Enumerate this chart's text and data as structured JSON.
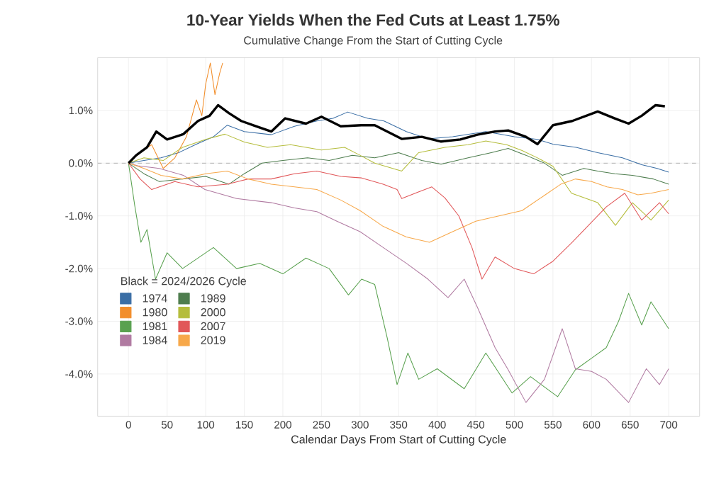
{
  "chart_data": {
    "type": "line",
    "title": "10-Year Yields When the Fed Cuts at Least 1.75%",
    "subtitle": "Cumulative Change From the Start of Cutting Cycle",
    "xlabel": "Calendar Days From Start of Cutting Cycle",
    "legend_title": "Black = 2024/2026 Cycle",
    "xlim": [
      -40,
      740
    ],
    "xticks": [
      0,
      50,
      100,
      150,
      200,
      250,
      300,
      350,
      400,
      450,
      500,
      550,
      600,
      650,
      700
    ],
    "ylim": [
      -4.8,
      2.0
    ],
    "yticks": [
      {
        "value": -4,
        "label": "-4.0%"
      },
      {
        "value": -3,
        "label": "-3.0%"
      },
      {
        "value": -2,
        "label": "-2.0%"
      },
      {
        "value": -1,
        "label": "-1.0%"
      },
      {
        "value": 0,
        "label": "0.0%"
      },
      {
        "value": 1,
        "label": "1.0%"
      }
    ],
    "grid": true,
    "legend": "bottom left",
    "marker": "none",
    "ref_lines": [
      {
        "axis": "y",
        "value": 0,
        "color": "#999999",
        "line_style": "dashed"
      }
    ],
    "series": [
      {
        "color": "#000000",
        "x": [
          0,
          10,
          24,
          36,
          50,
          71,
          90,
          105,
          116,
          130,
          146,
          165,
          185,
          203,
          230,
          250,
          275,
          302,
          319,
          354,
          380,
          405,
          430,
          452,
          475,
          492,
          515,
          530,
          550,
          575,
          608,
          630,
          648,
          665,
          683,
          695
        ],
        "values": [
          0,
          0.15,
          0.3,
          0.6,
          0.45,
          0.55,
          0.8,
          0.9,
          1.1,
          0.95,
          0.8,
          0.7,
          0.6,
          0.85,
          0.75,
          0.88,
          0.7,
          0.72,
          0.72,
          0.46,
          0.5,
          0.41,
          0.45,
          0.54,
          0.6,
          0.62,
          0.5,
          0.36,
          0.72,
          0.8,
          0.98,
          0.85,
          0.75,
          0.9,
          1.1,
          1.08
        ]
      },
      {
        "name": "1974",
        "color": "#3a6ea5",
        "x": [
          0,
          20,
          42,
          65,
          88,
          110,
          128,
          150,
          185,
          215,
          244,
          265,
          284,
          310,
          331,
          360,
          388,
          420,
          463,
          500,
          530,
          550,
          580,
          608,
          640,
          665,
          685,
          700
        ],
        "values": [
          0,
          0.05,
          0.1,
          0.2,
          0.36,
          0.5,
          0.72,
          0.6,
          0.54,
          0.7,
          0.8,
          0.85,
          0.97,
          0.85,
          0.8,
          0.6,
          0.46,
          0.5,
          0.6,
          0.5,
          0.45,
          0.36,
          0.3,
          0.2,
          0.1,
          -0.03,
          -0.1,
          -0.17
        ]
      },
      {
        "name": "1980",
        "color": "#f28e2b",
        "x": [
          0,
          15,
          30,
          45,
          60,
          75,
          88,
          95,
          100,
          106,
          112,
          118,
          122
        ],
        "values": [
          0,
          0.2,
          0.35,
          -0.1,
          0.1,
          0.5,
          1.2,
          0.9,
          1.5,
          1.9,
          1.3,
          1.7,
          1.9
        ]
      },
      {
        "name": "1981",
        "color": "#59a14f",
        "x": [
          0,
          8,
          16,
          24,
          35,
          50,
          70,
          90,
          110,
          140,
          170,
          200,
          230,
          260,
          285,
          302,
          319,
          335,
          348,
          362,
          376,
          400,
          435,
          463,
          497,
          521,
          556,
          579,
          600,
          619,
          635,
          648,
          665,
          677,
          700
        ],
        "values": [
          0,
          -0.8,
          -1.5,
          -1.26,
          -2.2,
          -1.7,
          -2.0,
          -1.8,
          -1.6,
          -2.0,
          -1.9,
          -2.1,
          -1.8,
          -2.0,
          -2.5,
          -2.2,
          -2.3,
          -3.3,
          -4.2,
          -3.6,
          -4.1,
          -3.9,
          -4.28,
          -3.6,
          -4.36,
          -4.05,
          -4.43,
          -3.92,
          -3.7,
          -3.5,
          -3.0,
          -2.47,
          -3.07,
          -2.63,
          -3.14
        ]
      },
      {
        "name": "1984",
        "color": "#b07aa1",
        "x": [
          0,
          12,
          40,
          71,
          99,
          140,
          185,
          215,
          244,
          270,
          300,
          330,
          360,
          388,
          414,
          435,
          452,
          475,
          492,
          515,
          539,
          562,
          579,
          600,
          619,
          648,
          671,
          688,
          700
        ],
        "values": [
          0,
          -0.05,
          -0.1,
          -0.23,
          -0.5,
          -0.67,
          -0.75,
          -0.85,
          -0.92,
          -1.1,
          -1.3,
          -1.6,
          -1.9,
          -2.2,
          -2.55,
          -2.2,
          -2.73,
          -3.5,
          -3.92,
          -4.54,
          -4.1,
          -3.14,
          -3.9,
          -3.95,
          -4.1,
          -4.54,
          -3.9,
          -4.2,
          -3.9
        ]
      },
      {
        "name": "1989",
        "color": "#4e7d4e",
        "x": [
          0,
          20,
          40,
          70,
          100,
          130,
          150,
          173,
          200,
          232,
          260,
          290,
          319,
          350,
          380,
          405,
          440,
          470,
          492,
          515,
          539,
          562,
          590,
          608,
          630,
          653,
          680,
          700
        ],
        "values": [
          0,
          -0.2,
          -0.35,
          -0.3,
          -0.25,
          -0.4,
          -0.2,
          0,
          0.05,
          0.1,
          0.05,
          0.15,
          0.1,
          0.2,
          0.05,
          -0.02,
          0.1,
          0.2,
          0.28,
          0.15,
          0,
          -0.23,
          -0.1,
          -0.15,
          -0.2,
          -0.23,
          -0.3,
          -0.4
        ]
      },
      {
        "name": "2000",
        "color": "#b5bd3c",
        "x": [
          0,
          20,
          45,
          70,
          100,
          125,
          150,
          180,
          210,
          250,
          280,
          300,
          319,
          354,
          376,
          410,
          440,
          463,
          490,
          510,
          530,
          550,
          574,
          608,
          631,
          653,
          677,
          700
        ],
        "values": [
          0,
          0.1,
          0.05,
          0.3,
          0.45,
          0.55,
          0.4,
          0.3,
          0.35,
          0.25,
          0.3,
          0.15,
          0,
          -0.15,
          0.2,
          0.3,
          0.35,
          0.42,
          0.35,
          0.24,
          0.1,
          -0.06,
          -0.57,
          -0.75,
          -1.18,
          -0.75,
          -1.08,
          -0.7
        ]
      },
      {
        "name": "2007",
        "color": "#e15759",
        "x": [
          0,
          15,
          30,
          60,
          90,
          128,
          155,
          185,
          215,
          244,
          275,
          302,
          330,
          348,
          354,
          375,
          393,
          410,
          428,
          445,
          458,
          475,
          500,
          525,
          550,
          575,
          596,
          619,
          643,
          665,
          688,
          700
        ],
        "values": [
          0,
          -0.3,
          -0.5,
          -0.35,
          -0.45,
          -0.4,
          -0.3,
          -0.3,
          -0.2,
          -0.15,
          -0.25,
          -0.28,
          -0.4,
          -0.5,
          -0.67,
          -0.55,
          -0.45,
          -0.66,
          -1.0,
          -1.6,
          -2.2,
          -1.78,
          -2.0,
          -2.1,
          -1.86,
          -1.5,
          -1.18,
          -0.83,
          -0.57,
          -1.08,
          -0.75,
          -0.96
        ]
      },
      {
        "name": "2019",
        "color": "#f7a84a",
        "x": [
          0,
          20,
          42,
          70,
          100,
          128,
          155,
          185,
          215,
          244,
          275,
          300,
          330,
          360,
          390,
          420,
          450,
          480,
          510,
          540,
          560,
          579,
          600,
          620,
          640,
          660,
          677,
          700
        ],
        "values": [
          0,
          -0.1,
          -0.23,
          -0.3,
          -0.2,
          -0.15,
          -0.3,
          -0.4,
          -0.45,
          -0.5,
          -0.7,
          -0.9,
          -1.2,
          -1.4,
          -1.5,
          -1.3,
          -1.1,
          -1.0,
          -0.9,
          -0.6,
          -0.4,
          -0.3,
          -0.35,
          -0.45,
          -0.5,
          -0.6,
          -0.57,
          -0.5
        ]
      }
    ]
  }
}
